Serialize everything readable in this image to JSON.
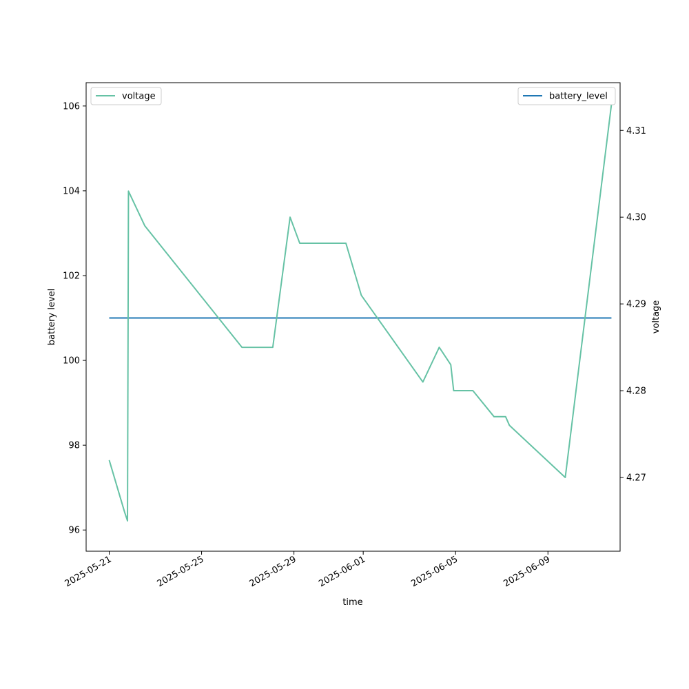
{
  "chart_data": {
    "type": "line",
    "xlabel": "time",
    "ylabel_left": "battery level",
    "ylabel_right": "voltage",
    "x_ticks": [
      "2025-05-21",
      "2025-05-25",
      "2025-05-29",
      "2025-06-01",
      "2025-06-05",
      "2025-06-09"
    ],
    "xlim": [
      "2025-05-20T00:00",
      "2025-06-12T03:00"
    ],
    "y_left": {
      "lim": [
        95.5,
        106.55
      ],
      "ticks": [
        96,
        98,
        100,
        102,
        104,
        106
      ]
    },
    "y_right": {
      "lim": [
        4.2615,
        4.3155
      ],
      "ticks": [
        4.27,
        4.28,
        4.29,
        4.3,
        4.31
      ]
    },
    "legends": [
      {
        "position": "upper-left",
        "entries": [
          {
            "series": "voltage",
            "label": "voltage"
          }
        ]
      },
      {
        "position": "upper-right",
        "entries": [
          {
            "series": "battery_level",
            "label": "battery_level"
          }
        ]
      }
    ],
    "series": [
      {
        "name": "battery_level",
        "axis": "left",
        "color": "#1f77b4",
        "points": [
          [
            "2025-05-21T00:00",
            101.0
          ],
          [
            "2025-06-11T18:00",
            101.0
          ]
        ]
      },
      {
        "name": "voltage",
        "axis": "right",
        "color": "#66c2a5",
        "points": [
          [
            "2025-05-21T00:00",
            4.272
          ],
          [
            "2025-05-21T16:00",
            4.266
          ],
          [
            "2025-05-21T19:00",
            4.265
          ],
          [
            "2025-05-21T20:00",
            4.303
          ],
          [
            "2025-05-22T13:00",
            4.299
          ],
          [
            "2025-05-26T18:00",
            4.285
          ],
          [
            "2025-05-28T02:00",
            4.285
          ],
          [
            "2025-05-28T20:00",
            4.3
          ],
          [
            "2025-05-29T06:00",
            4.297
          ],
          [
            "2025-05-31T06:00",
            4.297
          ],
          [
            "2025-05-31T22:00",
            4.291
          ],
          [
            "2025-06-03T14:00",
            4.281
          ],
          [
            "2025-06-04T07:00",
            4.285
          ],
          [
            "2025-06-04T19:00",
            4.283
          ],
          [
            "2025-06-04T22:00",
            4.28
          ],
          [
            "2025-06-05T18:00",
            4.28
          ],
          [
            "2025-06-06T16:00",
            4.277
          ],
          [
            "2025-06-07T04:00",
            4.277
          ],
          [
            "2025-06-07T08:00",
            4.276
          ],
          [
            "2025-06-09T18:00",
            4.27
          ],
          [
            "2025-06-11T18:00",
            4.313
          ]
        ]
      }
    ]
  }
}
